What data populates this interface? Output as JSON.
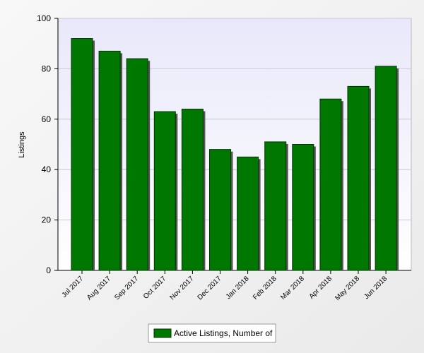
{
  "chart_data": {
    "type": "bar",
    "y_label": "Listings",
    "categories": [
      "Jul 2017",
      "Aug 2017",
      "Sep 2017",
      "Oct 2017",
      "Nov 2017",
      "Dec 2017",
      "Jan 2018",
      "Feb 2018",
      "Mar 2018",
      "Apr 2018",
      "May 2018",
      "Jun 2018"
    ],
    "series": [
      {
        "name": "Active Listings, Number of",
        "color": "#007700",
        "values": [
          92,
          87,
          84,
          63,
          64,
          48,
          45,
          51,
          50,
          68,
          73,
          81
        ]
      }
    ],
    "ylim": [
      0,
      100
    ],
    "yticks": [
      0,
      20,
      40,
      60,
      80,
      100
    ],
    "grid": true
  }
}
